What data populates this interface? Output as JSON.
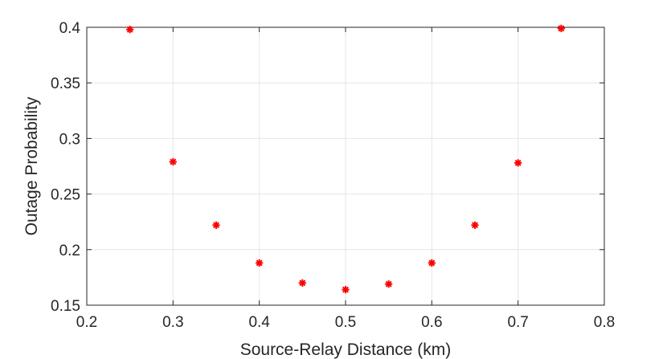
{
  "chart_data": {
    "type": "scatter",
    "title": "",
    "xlabel": "Source-Relay Distance (km)",
    "ylabel": "Outage Probability",
    "xlim": [
      0.2,
      0.8
    ],
    "ylim": [
      0.15,
      0.4
    ],
    "xticks": [
      "0.2",
      "0.3",
      "0.4",
      "0.5",
      "0.6",
      "0.7",
      "0.8"
    ],
    "yticks": [
      "0.15",
      "0.2",
      "0.25",
      "0.3",
      "0.35",
      "0.4"
    ],
    "grid": true,
    "marker": "asterisk",
    "color": "#ff0000",
    "series": [
      {
        "x": [
          0.25,
          0.3,
          0.35,
          0.4,
          0.45,
          0.5,
          0.55,
          0.6,
          0.65,
          0.7,
          0.75
        ],
        "y": [
          0.398,
          0.279,
          0.222,
          0.188,
          0.17,
          0.164,
          0.169,
          0.188,
          0.222,
          0.278,
          0.399
        ]
      }
    ]
  }
}
